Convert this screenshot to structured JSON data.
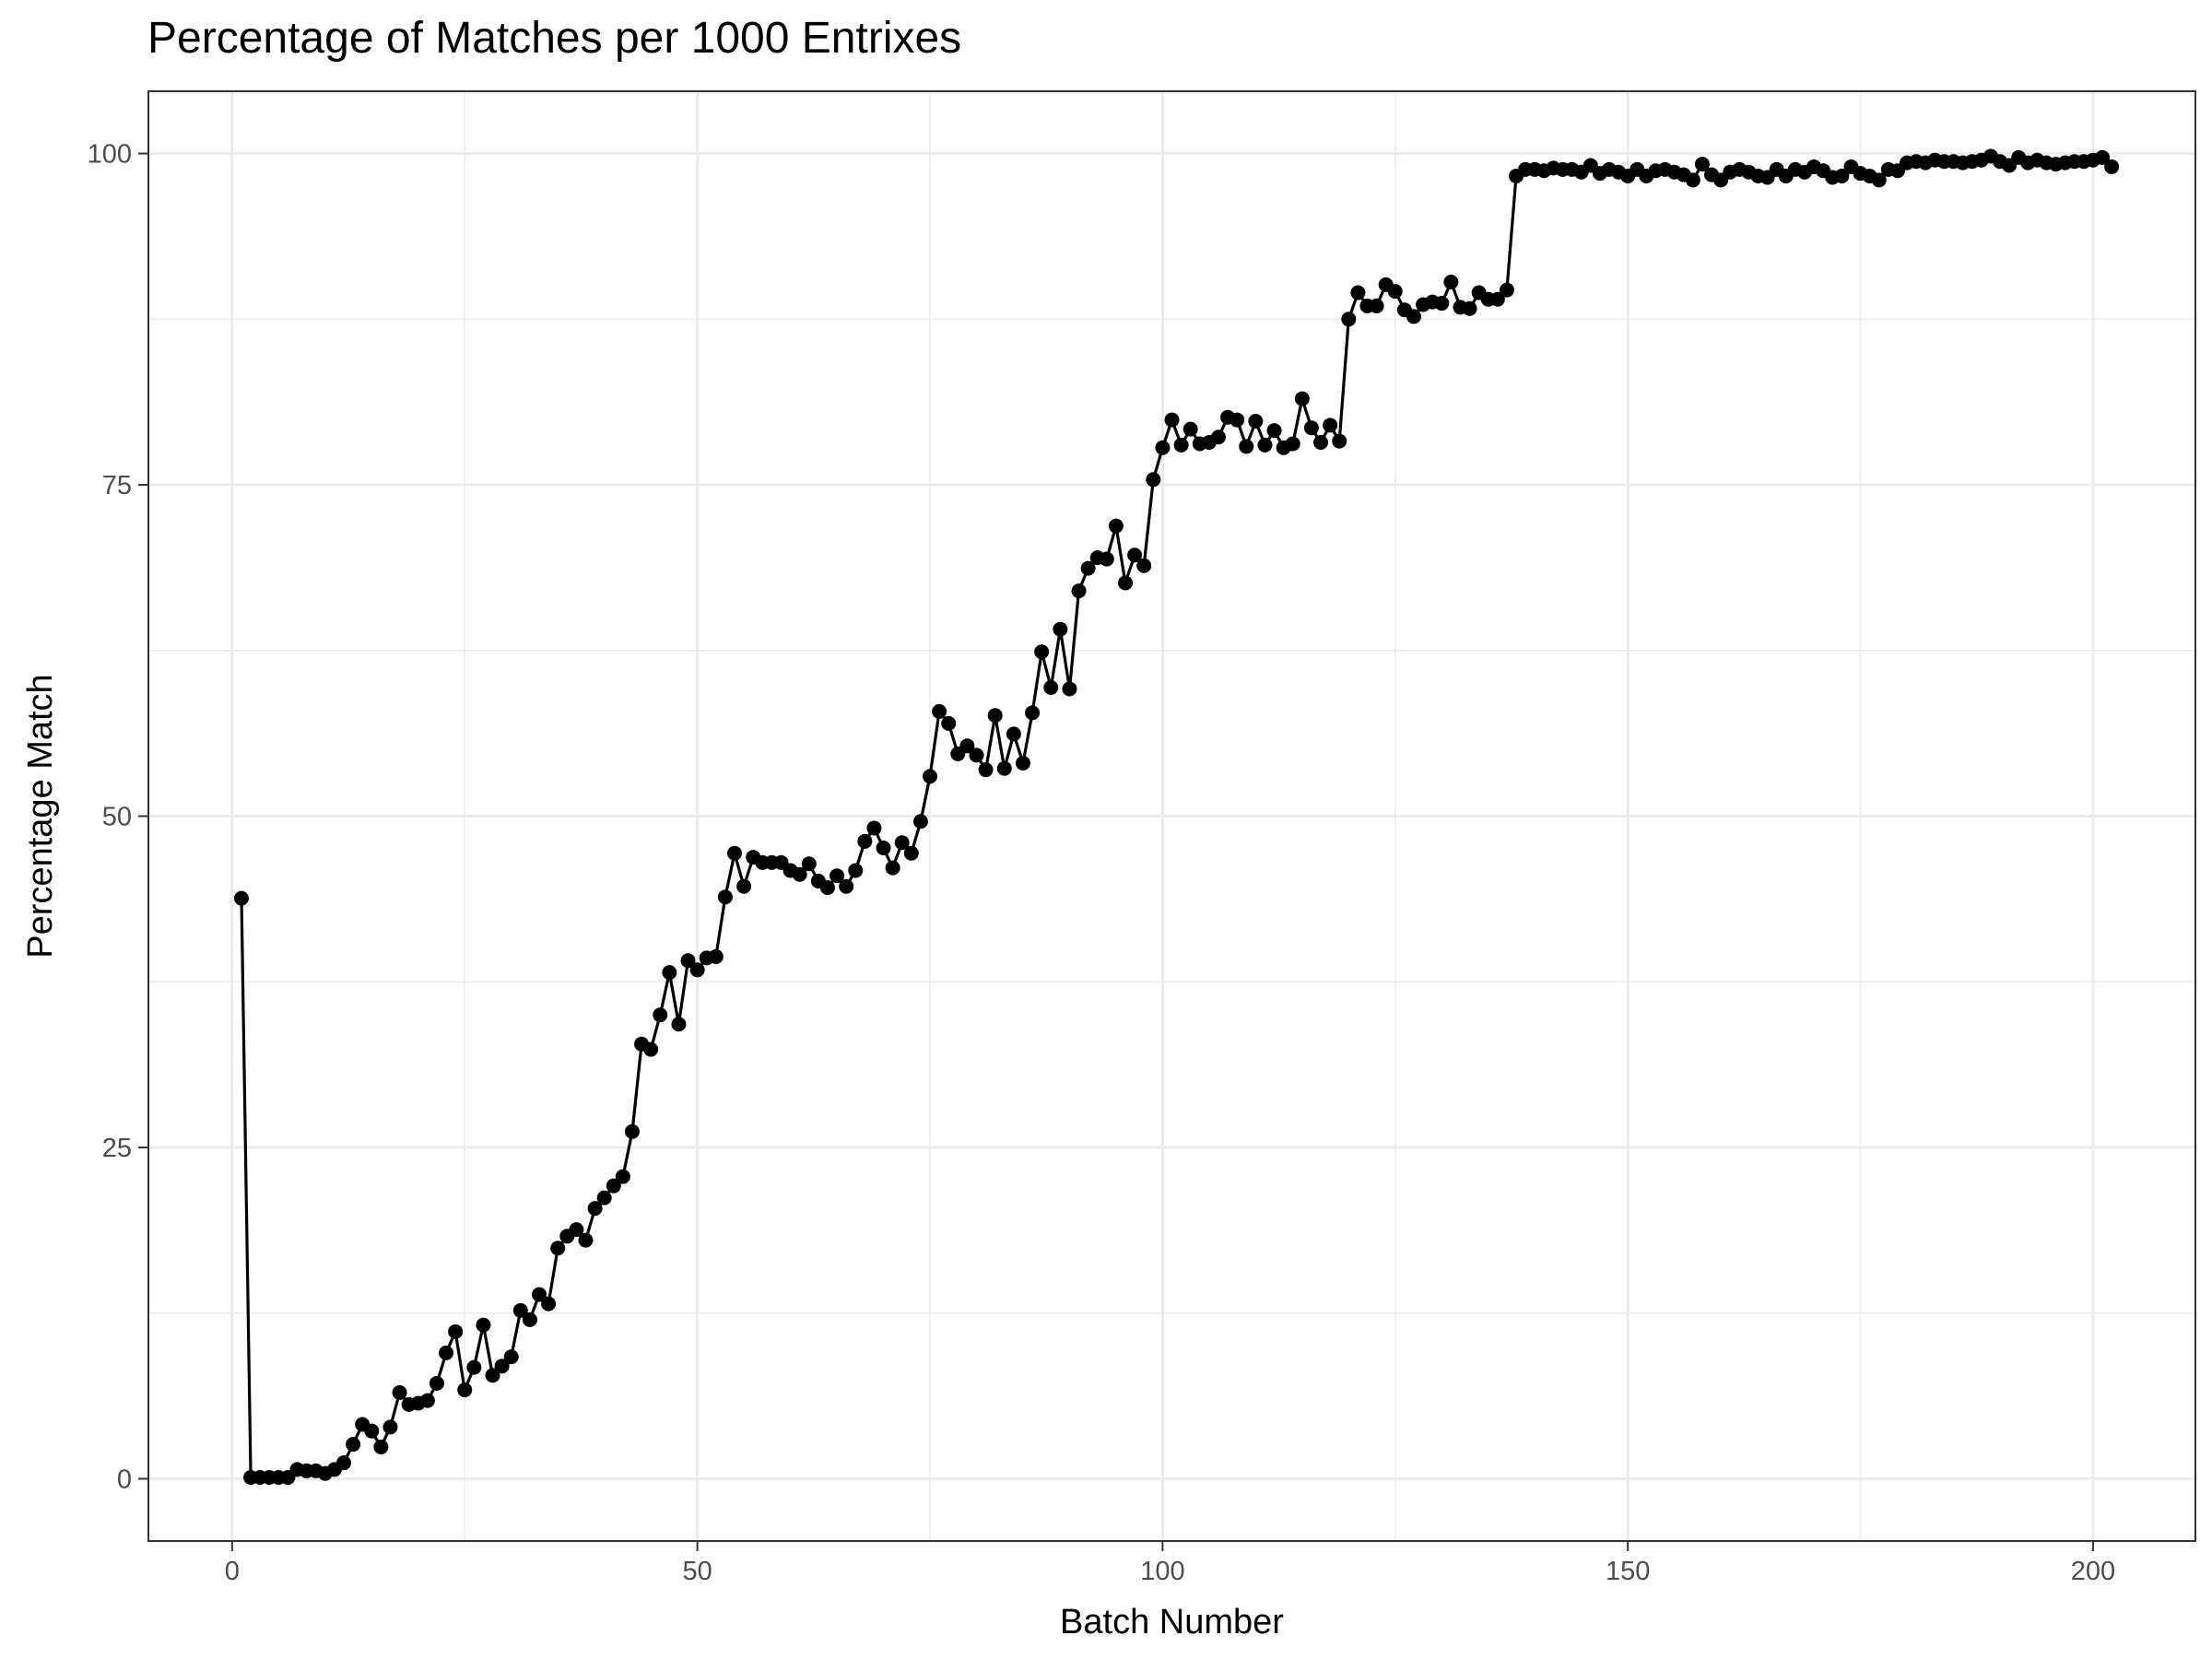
{
  "chart_data": {
    "type": "line",
    "title": "Percentage of Matches per 1000 Entrixes",
    "xlabel": "Batch Number",
    "ylabel": "Percentage Match",
    "xlim": [
      -9,
      211
    ],
    "ylim": [
      -4.7,
      104.7
    ],
    "x_ticks": [
      0,
      50,
      100,
      150,
      200
    ],
    "y_ticks": [
      0,
      25,
      50,
      75,
      100
    ],
    "grid": true,
    "markers": "points",
    "line_color": "#000000",
    "x": [
      1,
      2,
      3,
      4,
      5,
      6,
      7,
      8,
      9,
      10,
      11,
      12,
      13,
      14,
      15,
      16,
      17,
      18,
      19,
      20,
      21,
      22,
      23,
      24,
      25,
      26,
      27,
      28,
      29,
      30,
      31,
      32,
      33,
      34,
      35,
      36,
      37,
      38,
      39,
      40,
      41,
      42,
      43,
      44,
      45,
      46,
      47,
      48,
      49,
      50,
      51,
      52,
      53,
      54,
      55,
      56,
      57,
      58,
      59,
      60,
      61,
      62,
      63,
      64,
      65,
      66,
      67,
      68,
      69,
      70,
      71,
      72,
      73,
      74,
      75,
      76,
      77,
      78,
      79,
      80,
      81,
      82,
      83,
      84,
      85,
      86,
      87,
      88,
      89,
      90,
      91,
      92,
      93,
      94,
      95,
      96,
      97,
      98,
      99,
      100,
      101,
      102,
      103,
      104,
      105,
      106,
      107,
      108,
      109,
      110,
      111,
      112,
      113,
      114,
      115,
      116,
      117,
      118,
      119,
      120,
      121,
      122,
      123,
      124,
      125,
      126,
      127,
      128,
      129,
      130,
      131,
      132,
      133,
      134,
      135,
      136,
      137,
      138,
      139,
      140,
      141,
      142,
      143,
      144,
      145,
      146,
      147,
      148,
      149,
      150,
      151,
      152,
      153,
      154,
      155,
      156,
      157,
      158,
      159,
      160,
      161,
      162,
      163,
      164,
      165,
      166,
      167,
      168,
      169,
      170,
      171,
      172,
      173,
      174,
      175,
      176,
      177,
      178,
      179,
      180,
      181,
      182,
      183,
      184,
      185,
      186,
      187,
      188,
      189,
      190,
      191,
      192,
      193,
      194,
      195,
      196,
      197,
      198,
      199,
      200,
      201,
      202
    ],
    "y": [
      43.8,
      0.1,
      0.1,
      0.1,
      0.1,
      0.1,
      0.7,
      0.6,
      0.6,
      0.4,
      0.7,
      1.2,
      2.6,
      4.1,
      3.6,
      2.4,
      3.9,
      6.5,
      5.6,
      5.7,
      5.9,
      7.2,
      9.5,
      11.1,
      6.7,
      8.4,
      11.6,
      7.8,
      8.5,
      9.2,
      12.7,
      12.0,
      13.9,
      13.2,
      17.4,
      18.3,
      18.8,
      18.0,
      20.4,
      21.2,
      22.1,
      22.8,
      26.2,
      32.8,
      32.4,
      35.0,
      38.2,
      34.3,
      39.1,
      38.4,
      39.3,
      39.4,
      43.9,
      47.2,
      44.7,
      46.9,
      46.5,
      46.5,
      46.5,
      45.9,
      45.6,
      46.4,
      45.1,
      44.6,
      45.5,
      44.7,
      45.9,
      48.1,
      49.1,
      47.6,
      46.1,
      48.0,
      47.2,
      49.6,
      53.0,
      57.9,
      57.0,
      54.7,
      55.3,
      54.6,
      53.5,
      57.6,
      53.6,
      56.2,
      54.0,
      57.8,
      62.4,
      59.7,
      64.1,
      59.6,
      67.0,
      68.7,
      69.5,
      69.4,
      71.9,
      67.6,
      69.7,
      68.9,
      75.4,
      77.8,
      79.9,
      78.0,
      79.2,
      78.1,
      78.2,
      78.6,
      80.1,
      79.9,
      77.9,
      79.8,
      78.0,
      79.1,
      77.8,
      78.1,
      81.5,
      79.3,
      78.2,
      79.5,
      78.3,
      87.5,
      89.5,
      88.5,
      88.5,
      90.1,
      89.6,
      88.2,
      87.7,
      88.6,
      88.8,
      88.7,
      90.3,
      88.4,
      88.3,
      89.5,
      89.0,
      89.0,
      89.7,
      98.3,
      98.8,
      98.8,
      98.7,
      98.9,
      98.8,
      98.8,
      98.6,
      99.1,
      98.5,
      98.8,
      98.6,
      98.3,
      98.8,
      98.3,
      98.7,
      98.8,
      98.6,
      98.4,
      98.0,
      99.2,
      98.4,
      98.0,
      98.6,
      98.8,
      98.6,
      98.3,
      98.2,
      98.8,
      98.3,
      98.8,
      98.6,
      99.0,
      98.7,
      98.2,
      98.3,
      99.0,
      98.5,
      98.3,
      98.0,
      98.8,
      98.7,
      99.3,
      99.4,
      99.3,
      99.5,
      99.4,
      99.4,
      99.3,
      99.4,
      99.5,
      99.8,
      99.4,
      99.1,
      99.7,
      99.3,
      99.5,
      99.3,
      99.2,
      99.3,
      99.4,
      99.4,
      99.5,
      99.7,
      99.0
    ]
  }
}
